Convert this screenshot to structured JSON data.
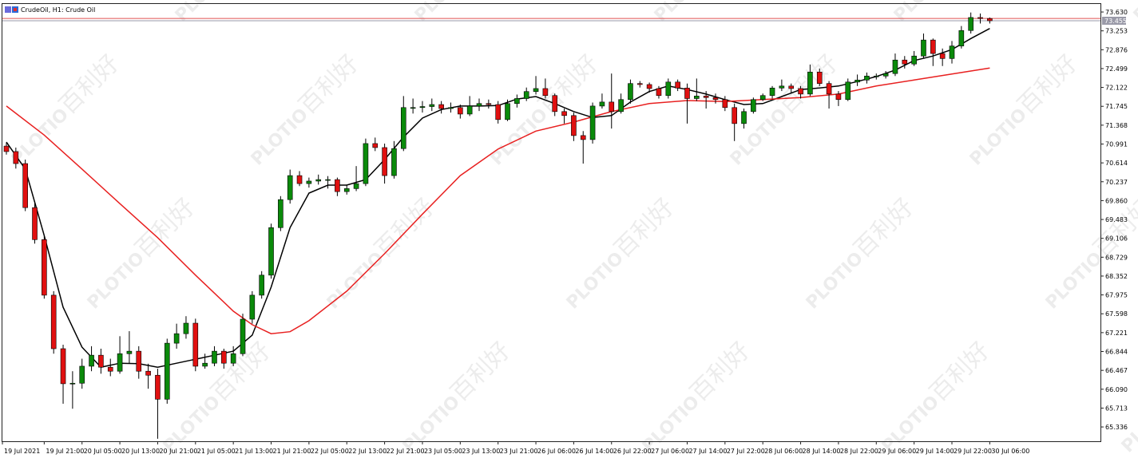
{
  "chart_data": {
    "type": "candlestick",
    "title": "CrudeOil, H1:  Crude Oil",
    "watermark": [
      "PLOTIO",
      "百利好"
    ],
    "up_color": "#0a8a0a",
    "down_color": "#e01010",
    "ylim": [
      65.05,
      73.79
    ],
    "yticks": [
      {
        "value": 73.63,
        "label": "73.630"
      },
      73.253,
      72.876,
      72.499,
      72.122,
      71.745,
      71.368,
      70.991,
      70.614,
      70.237,
      {
        "value": 69.86,
        "label": "69.860"
      },
      69.483,
      69.106,
      68.729,
      68.352,
      67.975,
      67.598,
      67.221,
      66.844,
      66.467,
      {
        "value": 66.09,
        "label": "66.090"
      },
      65.713,
      65.336
    ],
    "price_lines": [
      {
        "value": 73.5,
        "color": "#e05050"
      },
      {
        "value": 73.455,
        "label": "73.455",
        "color": "#9a9aa8"
      }
    ],
    "xticks": [
      {
        "value": 0,
        "label": "19 Jul 2021"
      },
      {
        "value": 4,
        "label": "19 Jul 21:00"
      },
      {
        "value": 8,
        "label": "20 Jul 05:00"
      },
      {
        "value": 12,
        "label": "20 Jul 13:00"
      },
      {
        "value": 16,
        "label": "20 Jul 21:00"
      },
      {
        "value": 20,
        "label": "21 Jul 05:00"
      },
      {
        "value": 24,
        "label": "21 Jul 13:00"
      },
      {
        "value": 28,
        "label": "21 Jul 21:00"
      },
      {
        "value": 32,
        "label": "22 Jul 05:00"
      },
      {
        "value": 36,
        "label": "22 Jul 13:00"
      },
      {
        "value": 40,
        "label": "22 Jul 21:00"
      },
      {
        "value": 44,
        "label": "23 Jul 05:00"
      },
      {
        "value": 48,
        "label": "23 Jul 13:00"
      },
      {
        "value": 52,
        "label": "23 Jul 21:00"
      },
      {
        "value": 56,
        "label": "26 Jul 06:00"
      },
      {
        "value": 60,
        "label": "26 Jul 14:00"
      },
      {
        "value": 64,
        "label": "26 Jul 22:00"
      },
      {
        "value": 68,
        "label": "27 Jul 06:00"
      },
      {
        "value": 72,
        "label": "27 Jul 14:00"
      },
      {
        "value": 76,
        "label": "27 Jul 22:00"
      },
      {
        "value": 80,
        "label": "28 Jul 06:00"
      },
      {
        "value": 84,
        "label": "28 Jul 14:00"
      },
      {
        "value": 88,
        "label": "28 Jul 22:00"
      },
      {
        "value": 92,
        "label": "29 Jul 06:00"
      },
      {
        "value": 96,
        "label": "29 Jul 14:00"
      },
      {
        "value": 100,
        "label": "29 Jul 22:00"
      },
      {
        "value": 104,
        "label": "30 Jul 06:00"
      }
    ],
    "candles": [
      [
        70.95,
        71.02,
        70.78,
        70.84
      ],
      [
        70.84,
        70.92,
        70.5,
        70.6
      ],
      [
        70.6,
        70.68,
        69.65,
        69.72
      ],
      [
        69.72,
        69.85,
        69.0,
        69.08
      ],
      [
        69.08,
        69.15,
        67.9,
        67.97
      ],
      [
        67.97,
        68.05,
        66.8,
        66.9
      ],
      [
        66.9,
        66.98,
        65.8,
        66.2
      ],
      [
        66.2,
        66.45,
        65.7,
        66.21
      ],
      [
        66.21,
        66.7,
        66.1,
        66.55
      ],
      [
        66.55,
        66.95,
        66.45,
        66.77
      ],
      [
        66.77,
        66.9,
        66.4,
        66.53
      ],
      [
        66.53,
        66.7,
        66.35,
        66.45
      ],
      [
        66.45,
        67.15,
        66.4,
        66.8
      ],
      [
        66.8,
        67.25,
        66.6,
        66.85
      ],
      [
        66.85,
        66.95,
        66.3,
        66.45
      ],
      [
        66.45,
        66.6,
        66.1,
        66.37
      ],
      [
        66.37,
        66.5,
        65.1,
        65.89
      ],
      [
        65.89,
        67.1,
        65.8,
        67.01
      ],
      [
        67.01,
        67.4,
        66.9,
        67.2
      ],
      [
        67.2,
        67.55,
        67.1,
        67.41
      ],
      [
        67.41,
        67.5,
        66.45,
        66.55
      ],
      [
        66.55,
        66.8,
        66.5,
        66.61
      ],
      [
        66.61,
        66.95,
        66.55,
        66.85
      ],
      [
        66.85,
        66.9,
        66.5,
        66.61
      ],
      [
        66.61,
        66.95,
        66.55,
        66.8
      ],
      [
        66.8,
        67.6,
        66.75,
        67.49
      ],
      [
        67.49,
        68.05,
        67.4,
        67.97
      ],
      [
        67.97,
        68.45,
        67.9,
        68.37
      ],
      [
        68.37,
        69.4,
        68.3,
        69.32
      ],
      [
        69.32,
        69.95,
        69.25,
        69.88
      ],
      [
        69.88,
        70.48,
        69.8,
        70.36
      ],
      [
        70.36,
        70.45,
        70.15,
        70.2
      ],
      [
        70.2,
        70.32,
        70.12,
        70.25
      ],
      [
        70.25,
        70.38,
        70.18,
        70.28
      ],
      [
        70.28,
        70.35,
        70.1,
        70.28
      ],
      [
        70.28,
        70.32,
        69.95,
        70.04
      ],
      [
        70.04,
        70.18,
        69.98,
        70.1
      ],
      [
        70.1,
        70.55,
        70.05,
        70.2
      ],
      [
        70.2,
        71.1,
        70.15,
        71.0
      ],
      [
        71.0,
        71.12,
        70.85,
        70.92
      ],
      [
        70.92,
        71.0,
        70.2,
        70.36
      ],
      [
        70.36,
        71.05,
        70.3,
        70.9
      ],
      [
        70.9,
        71.95,
        70.85,
        71.72
      ],
      [
        71.72,
        71.9,
        71.6,
        71.72
      ],
      [
        71.72,
        71.85,
        71.62,
        71.74
      ],
      [
        71.74,
        71.9,
        71.65,
        71.78
      ],
      [
        71.78,
        71.85,
        71.6,
        71.7
      ],
      [
        71.7,
        71.82,
        71.62,
        71.72
      ],
      [
        71.72,
        71.78,
        71.5,
        71.59
      ],
      [
        71.59,
        71.95,
        71.55,
        71.75
      ],
      [
        71.75,
        71.9,
        71.65,
        71.8
      ],
      [
        71.8,
        71.88,
        71.7,
        71.78
      ],
      [
        71.78,
        71.85,
        71.4,
        71.48
      ],
      [
        71.48,
        71.88,
        71.45,
        71.8
      ],
      [
        71.8,
        71.98,
        71.72,
        71.9
      ],
      [
        71.9,
        72.12,
        71.85,
        72.04
      ],
      [
        72.04,
        72.35,
        71.98,
        72.1
      ],
      [
        72.1,
        72.3,
        71.9,
        71.96
      ],
      [
        71.96,
        72.0,
        71.55,
        71.64
      ],
      [
        71.64,
        71.7,
        71.4,
        71.56
      ],
      [
        71.56,
        71.62,
        71.05,
        71.16
      ],
      [
        71.16,
        71.25,
        70.6,
        71.08
      ],
      [
        71.08,
        71.82,
        71.0,
        71.75
      ],
      [
        71.75,
        72.0,
        71.7,
        71.83
      ],
      [
        71.83,
        72.4,
        71.3,
        71.64
      ],
      [
        71.64,
        72.0,
        71.6,
        71.88
      ],
      [
        71.88,
        72.28,
        71.8,
        72.2
      ],
      [
        72.2,
        72.25,
        72.12,
        72.18
      ],
      [
        72.18,
        72.22,
        72.02,
        72.1
      ],
      [
        72.1,
        72.15,
        71.9,
        71.96
      ],
      [
        71.96,
        72.3,
        71.9,
        72.23
      ],
      [
        72.23,
        72.28,
        72.05,
        72.11
      ],
      [
        72.11,
        72.2,
        71.4,
        71.9
      ],
      [
        71.9,
        72.3,
        71.85,
        71.95
      ],
      [
        71.95,
        72.05,
        71.7,
        71.92
      ],
      [
        71.92,
        72.0,
        71.8,
        71.88
      ],
      [
        71.88,
        71.95,
        71.65,
        71.72
      ],
      [
        71.72,
        71.8,
        71.05,
        71.4
      ],
      [
        71.4,
        71.7,
        71.3,
        71.64
      ],
      [
        71.64,
        71.92,
        71.6,
        71.88
      ],
      [
        71.88,
        72.0,
        71.85,
        71.96
      ],
      [
        71.96,
        72.15,
        71.9,
        72.11
      ],
      [
        72.11,
        72.28,
        72.05,
        72.15
      ],
      [
        72.15,
        72.2,
        72.0,
        72.1
      ],
      [
        72.1,
        72.15,
        71.9,
        71.99
      ],
      [
        71.99,
        72.58,
        71.95,
        72.43
      ],
      [
        72.43,
        72.5,
        72.15,
        72.2
      ],
      [
        72.2,
        72.25,
        71.7,
        71.99
      ],
      [
        71.99,
        72.05,
        71.75,
        71.88
      ],
      [
        71.88,
        72.3,
        71.85,
        72.23
      ],
      [
        72.23,
        72.38,
        72.15,
        72.27
      ],
      [
        72.27,
        72.42,
        72.2,
        72.35
      ],
      [
        72.35,
        72.4,
        72.28,
        72.35
      ],
      [
        72.35,
        72.45,
        72.3,
        72.4
      ],
      [
        72.4,
        72.8,
        72.35,
        72.67
      ],
      [
        72.67,
        72.75,
        72.5,
        72.59
      ],
      [
        72.59,
        72.85,
        72.55,
        72.75
      ],
      [
        72.75,
        73.2,
        72.7,
        73.07
      ],
      [
        73.07,
        73.1,
        72.55,
        72.8
      ],
      [
        72.8,
        72.9,
        72.55,
        72.7
      ],
      [
        72.7,
        73.05,
        72.6,
        72.95
      ],
      [
        72.95,
        73.35,
        72.9,
        73.26
      ],
      [
        73.26,
        73.62,
        73.2,
        73.52
      ],
      [
        73.52,
        73.6,
        73.4,
        73.5
      ],
      [
        73.5,
        73.52,
        73.4,
        73.455
      ]
    ],
    "moving_averages": [
      {
        "color": "#000000",
        "x": [
          0,
          2,
          4,
          6,
          8,
          10,
          12,
          14,
          16,
          18,
          20,
          22,
          24,
          26,
          28,
          30,
          32,
          34,
          36,
          38,
          40,
          42,
          44,
          46,
          48,
          50,
          52,
          54,
          56,
          58,
          60,
          62,
          64,
          66,
          68,
          70,
          72,
          74,
          76,
          78,
          80,
          82,
          84,
          86,
          88,
          90,
          92,
          94,
          96,
          98,
          100,
          102,
          104
        ],
        "values": [
          71.03,
          70.49,
          69.16,
          67.73,
          66.93,
          66.53,
          66.61,
          66.6,
          66.53,
          66.61,
          66.69,
          66.77,
          66.85,
          67.17,
          68.13,
          69.32,
          70.01,
          70.17,
          70.17,
          70.28,
          70.68,
          71.13,
          71.51,
          71.68,
          71.75,
          71.75,
          71.76,
          71.89,
          71.94,
          71.8,
          71.64,
          71.52,
          71.56,
          71.83,
          72.04,
          72.15,
          72.08,
          71.99,
          71.88,
          71.78,
          71.8,
          71.94,
          72.08,
          72.11,
          72.15,
          72.24,
          72.34,
          72.47,
          72.66,
          72.75,
          72.88,
          73.1,
          73.3
        ]
      },
      {
        "color": "#e82020",
        "x": [
          0,
          4,
          8,
          12,
          16,
          20,
          24,
          26,
          28,
          30,
          32,
          36,
          40,
          44,
          48,
          52,
          56,
          60,
          64,
          68,
          72,
          76,
          80,
          84,
          88,
          92,
          96,
          100,
          104
        ],
        "values": [
          71.75,
          71.17,
          70.49,
          69.8,
          69.12,
          68.37,
          67.65,
          67.38,
          67.2,
          67.24,
          67.46,
          68.05,
          68.8,
          69.59,
          70.36,
          70.89,
          71.25,
          71.43,
          71.64,
          71.8,
          71.86,
          71.84,
          71.88,
          71.92,
          71.99,
          72.15,
          72.27,
          72.39,
          72.51
        ]
      }
    ]
  }
}
